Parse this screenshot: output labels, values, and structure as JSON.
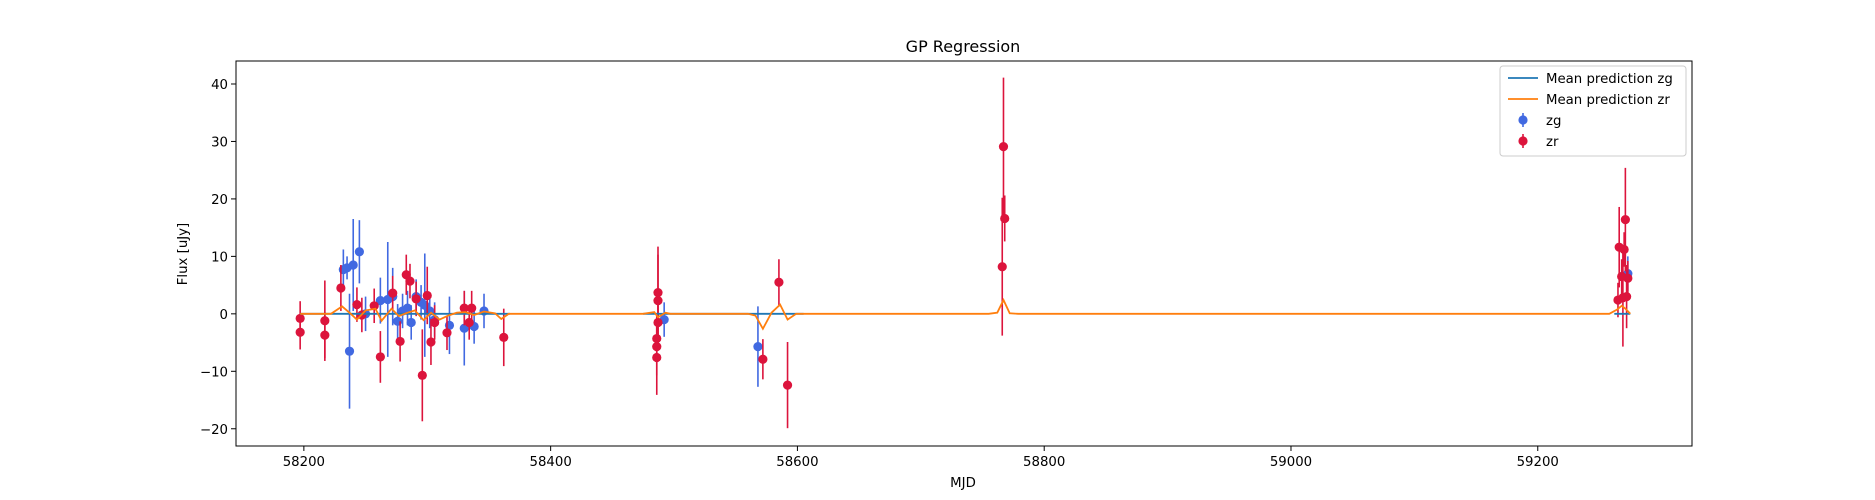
{
  "chart_data": {
    "type": "scatter",
    "title": "GP Regression",
    "xlabel": "MJD",
    "ylabel": "Flux [uJy]",
    "xlim": [
      58145,
      59325
    ],
    "ylim": [
      -23,
      44
    ],
    "xticks": [
      58200,
      58400,
      58600,
      58800,
      59000,
      59200
    ],
    "yticks": [
      -20,
      -10,
      0,
      10,
      20,
      30,
      40
    ],
    "grid": false,
    "legend_position": "top-right",
    "legend": [
      "Mean prediction zg",
      "Mean prediction zr",
      "zg",
      "zr"
    ],
    "colors": {
      "zg_line": "#1f77b4",
      "zr_line": "#ff7f0e",
      "zg_points": "#4169e1",
      "zr_points": "#dc143c"
    },
    "series": [
      {
        "name": "zg",
        "kind": "errorbar",
        "points": [
          {
            "x": 58232,
            "y": 7.7,
            "err": 3.5
          },
          {
            "x": 58235,
            "y": 8.0,
            "err": 2.0
          },
          {
            "x": 58237,
            "y": -6.5,
            "err": 10.0
          },
          {
            "x": 58240,
            "y": 8.5,
            "err": 8.0
          },
          {
            "x": 58245,
            "y": 10.8,
            "err": 5.5
          },
          {
            "x": 58250,
            "y": 0.0,
            "err": 3.0
          },
          {
            "x": 58262,
            "y": 2.3,
            "err": 4.0
          },
          {
            "x": 58268,
            "y": 2.5,
            "err": 10.0
          },
          {
            "x": 58272,
            "y": 3.0,
            "err": 5.0
          },
          {
            "x": 58276,
            "y": -1.3,
            "err": 3.0
          },
          {
            "x": 58280,
            "y": 0.5,
            "err": 3.0
          },
          {
            "x": 58284,
            "y": 1.0,
            "err": 3.0
          },
          {
            "x": 58287,
            "y": -1.5,
            "err": 3.0
          },
          {
            "x": 58291,
            "y": 3.0,
            "err": 3.0
          },
          {
            "x": 58295,
            "y": 2.0,
            "err": 3.0
          },
          {
            "x": 58298,
            "y": 1.5,
            "err": 9.0
          },
          {
            "x": 58302,
            "y": 0.5,
            "err": 3.0
          },
          {
            "x": 58306,
            "y": -1.0,
            "err": 3.0
          },
          {
            "x": 58318,
            "y": -2.0,
            "err": 5.0
          },
          {
            "x": 58330,
            "y": -2.5,
            "err": 6.5
          },
          {
            "x": 58338,
            "y": -2.2,
            "err": 3.0
          },
          {
            "x": 58346,
            "y": 0.5,
            "err": 3.0
          },
          {
            "x": 58492,
            "y": -1.0,
            "err": 3.0
          },
          {
            "x": 58568,
            "y": -5.7,
            "err": 7.0
          },
          {
            "x": 59273,
            "y": 7.0,
            "err": 3.0
          }
        ]
      },
      {
        "name": "zr",
        "kind": "errorbar",
        "points": [
          {
            "x": 58197,
            "y": -0.8,
            "err": 3.0
          },
          {
            "x": 58197,
            "y": -3.2,
            "err": 3.0
          },
          {
            "x": 58217,
            "y": -1.2,
            "err": 7.0
          },
          {
            "x": 58217,
            "y": -3.7,
            "err": 4.0
          },
          {
            "x": 58230,
            "y": 4.5,
            "err": 4.0
          },
          {
            "x": 58243,
            "y": 1.6,
            "err": 3.0
          },
          {
            "x": 58247,
            "y": -0.2,
            "err": 3.0
          },
          {
            "x": 58257,
            "y": 1.4,
            "err": 3.0
          },
          {
            "x": 58262,
            "y": -7.5,
            "err": 4.5
          },
          {
            "x": 58272,
            "y": 3.6,
            "err": 3.0
          },
          {
            "x": 58278,
            "y": -4.8,
            "err": 3.5
          },
          {
            "x": 58283,
            "y": 6.8,
            "err": 3.5
          },
          {
            "x": 58286,
            "y": 5.7,
            "err": 3.0
          },
          {
            "x": 58291,
            "y": 2.6,
            "err": 3.0
          },
          {
            "x": 58296,
            "y": -10.7,
            "err": 8.0
          },
          {
            "x": 58300,
            "y": 3.2,
            "err": 5.0
          },
          {
            "x": 58303,
            "y": -4.9,
            "err": 4.0
          },
          {
            "x": 58306,
            "y": -1.5,
            "err": 3.0
          },
          {
            "x": 58316,
            "y": -3.3,
            "err": 3.0
          },
          {
            "x": 58330,
            "y": 1.0,
            "err": 3.0
          },
          {
            "x": 58334,
            "y": -1.5,
            "err": 3.0
          },
          {
            "x": 58336,
            "y": 1.0,
            "err": 3.0
          },
          {
            "x": 58362,
            "y": -4.1,
            "err": 5.0
          },
          {
            "x": 58486,
            "y": -7.6,
            "err": 6.5
          },
          {
            "x": 58486,
            "y": -5.7,
            "err": 5.0
          },
          {
            "x": 58486,
            "y": -4.3,
            "err": 4.0
          },
          {
            "x": 58487,
            "y": 2.3,
            "err": 8.0
          },
          {
            "x": 58487,
            "y": 3.7,
            "err": 8.0
          },
          {
            "x": 58487,
            "y": -1.5,
            "err": 3.0
          },
          {
            "x": 58572,
            "y": -7.9,
            "err": 3.5
          },
          {
            "x": 58585,
            "y": 5.5,
            "err": 4.0
          },
          {
            "x": 58592,
            "y": -12.4,
            "err": 7.5
          },
          {
            "x": 58766,
            "y": 8.2,
            "err": 12.0
          },
          {
            "x": 58767,
            "y": 29.1,
            "err": 12.0
          },
          {
            "x": 58768,
            "y": 16.6,
            "err": 4.0
          },
          {
            "x": 59265,
            "y": 2.4,
            "err": 3.0
          },
          {
            "x": 59266,
            "y": 11.6,
            "err": 7.0
          },
          {
            "x": 59268,
            "y": 6.5,
            "err": 3.0
          },
          {
            "x": 59269,
            "y": 2.8,
            "err": 8.5
          },
          {
            "x": 59270,
            "y": 11.2,
            "err": 3.0
          },
          {
            "x": 59271,
            "y": 16.4,
            "err": 9.0
          },
          {
            "x": 59272,
            "y": 3.0,
            "err": 5.5
          },
          {
            "x": 59273,
            "y": 6.2,
            "err": 3.0
          }
        ]
      },
      {
        "name": "Mean prediction zg",
        "kind": "line",
        "x": [
          58197,
          58367,
          58367,
          58475,
          58475,
          58605,
          58605,
          59262,
          59262,
          59275
        ],
        "y": [
          0,
          0,
          null,
          null,
          0,
          0,
          null,
          null,
          0,
          0
        ]
      },
      {
        "name": "Mean prediction zr",
        "kind": "line",
        "x": [
          58197,
          58222,
          58231,
          58238,
          58243,
          58250,
          58258,
          58263,
          58271,
          58277,
          58284,
          58290,
          58297,
          58303,
          58310,
          58317,
          58324,
          58331,
          58338,
          58346,
          58355,
          58360,
          58366,
          58475,
          58484,
          58487,
          58493,
          58497,
          58560,
          58566,
          58572,
          58579,
          58586,
          58592,
          58599,
          58605,
          58755,
          58762,
          58767,
          58772,
          58779,
          59258,
          59264,
          59268,
          59271,
          59275
        ],
        "y": [
          0,
          0,
          1.3,
          0,
          -1.0,
          0.6,
          0.9,
          -1.2,
          0.9,
          -0.4,
          0.2,
          0.6,
          -1.1,
          0.2,
          -1.0,
          -0.3,
          0.2,
          0.3,
          -0.2,
          0.4,
          0.1,
          -0.9,
          0,
          0,
          0.3,
          -0.6,
          0.2,
          0,
          0,
          -0.3,
          -2.6,
          0.2,
          1.6,
          -1.0,
          0,
          0,
          0,
          0.2,
          2.4,
          0.1,
          0,
          0,
          0.7,
          1.4,
          0.9,
          0
        ]
      }
    ]
  }
}
